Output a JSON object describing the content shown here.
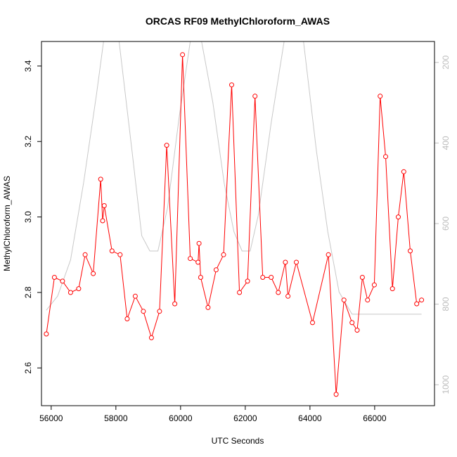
{
  "chart_data": {
    "type": "line",
    "title": "ORCAS RF09 MethylChloroform_AWAS",
    "xlabel": "UTC Seconds",
    "ylabel": "MethylChloroform_AWAS",
    "xlim": [
      55700,
      67850
    ],
    "ylim": [
      2.5,
      3.465
    ],
    "x_ticks": [
      56000,
      58000,
      60000,
      62000,
      64000,
      66000
    ],
    "y_ticks": [
      2.6,
      2.8,
      3.0,
      3.2,
      3.4
    ],
    "y2_ticks": [
      200,
      400,
      600,
      800,
      1000
    ],
    "y2lim": [
      1052,
      148
    ],
    "y2_reversed": true,
    "grid": false,
    "colors": {
      "series": "#ff0000",
      "secondary": "#c8c8c8"
    },
    "series": [
      {
        "values": [
          {
            "x": 55850,
            "y": 2.69
          },
          {
            "x": 56100,
            "y": 2.84
          },
          {
            "x": 56350,
            "y": 2.83
          },
          {
            "x": 56600,
            "y": 2.8
          },
          {
            "x": 56850,
            "y": 2.81
          },
          {
            "x": 57050,
            "y": 2.9
          },
          {
            "x": 57300,
            "y": 2.85
          },
          {
            "x": 57530,
            "y": 3.1
          },
          {
            "x": 57590,
            "y": 2.99
          },
          {
            "x": 57640,
            "y": 3.03
          },
          {
            "x": 57880,
            "y": 2.91
          },
          {
            "x": 58130,
            "y": 2.9
          },
          {
            "x": 58350,
            "y": 2.73
          },
          {
            "x": 58600,
            "y": 2.79
          },
          {
            "x": 58850,
            "y": 2.75
          },
          {
            "x": 59100,
            "y": 2.68
          },
          {
            "x": 59350,
            "y": 2.75
          },
          {
            "x": 59570,
            "y": 3.19
          },
          {
            "x": 59820,
            "y": 2.77
          },
          {
            "x": 60060,
            "y": 3.43
          },
          {
            "x": 60300,
            "y": 2.89
          },
          {
            "x": 60540,
            "y": 2.88
          },
          {
            "x": 60570,
            "y": 2.93
          },
          {
            "x": 60620,
            "y": 2.84
          },
          {
            "x": 60850,
            "y": 2.76
          },
          {
            "x": 61100,
            "y": 2.86
          },
          {
            "x": 61330,
            "y": 2.9
          },
          {
            "x": 61580,
            "y": 3.35
          },
          {
            "x": 61820,
            "y": 2.8
          },
          {
            "x": 62070,
            "y": 2.83
          },
          {
            "x": 62300,
            "y": 3.32
          },
          {
            "x": 62540,
            "y": 2.84
          },
          {
            "x": 62800,
            "y": 2.84
          },
          {
            "x": 63020,
            "y": 2.8
          },
          {
            "x": 63240,
            "y": 2.88
          },
          {
            "x": 63320,
            "y": 2.79
          },
          {
            "x": 63580,
            "y": 2.88
          },
          {
            "x": 64080,
            "y": 2.72
          },
          {
            "x": 64570,
            "y": 2.9
          },
          {
            "x": 64810,
            "y": 2.53
          },
          {
            "x": 65050,
            "y": 2.78
          },
          {
            "x": 65300,
            "y": 2.72
          },
          {
            "x": 65460,
            "y": 2.7
          },
          {
            "x": 65620,
            "y": 2.84
          },
          {
            "x": 65780,
            "y": 2.78
          },
          {
            "x": 65990,
            "y": 2.82
          },
          {
            "x": 66170,
            "y": 3.32
          },
          {
            "x": 66340,
            "y": 3.16
          },
          {
            "x": 66550,
            "y": 2.81
          },
          {
            "x": 66730,
            "y": 3.0
          },
          {
            "x": 66900,
            "y": 3.12
          },
          {
            "x": 67100,
            "y": 2.91
          },
          {
            "x": 67300,
            "y": 2.77
          },
          {
            "x": 67450,
            "y": 2.78
          }
        ]
      },
      {
        "axis": "right",
        "values": [
          {
            "x": 55850,
            "y": 815
          },
          {
            "x": 56200,
            "y": 780
          },
          {
            "x": 56600,
            "y": 690
          },
          {
            "x": 57000,
            "y": 500
          },
          {
            "x": 57400,
            "y": 280
          },
          {
            "x": 57620,
            "y": 148
          },
          {
            "x": 58100,
            "y": 148
          },
          {
            "x": 58500,
            "y": 420
          },
          {
            "x": 58800,
            "y": 630
          },
          {
            "x": 59050,
            "y": 668
          },
          {
            "x": 59300,
            "y": 668
          },
          {
            "x": 59600,
            "y": 560
          },
          {
            "x": 59950,
            "y": 340
          },
          {
            "x": 60300,
            "y": 148
          },
          {
            "x": 60650,
            "y": 148
          },
          {
            "x": 61000,
            "y": 300
          },
          {
            "x": 61350,
            "y": 500
          },
          {
            "x": 61650,
            "y": 620
          },
          {
            "x": 61900,
            "y": 668
          },
          {
            "x": 62150,
            "y": 668
          },
          {
            "x": 62400,
            "y": 580
          },
          {
            "x": 62800,
            "y": 350
          },
          {
            "x": 63200,
            "y": 148
          },
          {
            "x": 63800,
            "y": 148
          },
          {
            "x": 64200,
            "y": 420
          },
          {
            "x": 64550,
            "y": 620
          },
          {
            "x": 64900,
            "y": 770
          },
          {
            "x": 65300,
            "y": 825
          },
          {
            "x": 66000,
            "y": 825
          },
          {
            "x": 66800,
            "y": 825
          },
          {
            "x": 67450,
            "y": 825
          }
        ]
      }
    ]
  }
}
